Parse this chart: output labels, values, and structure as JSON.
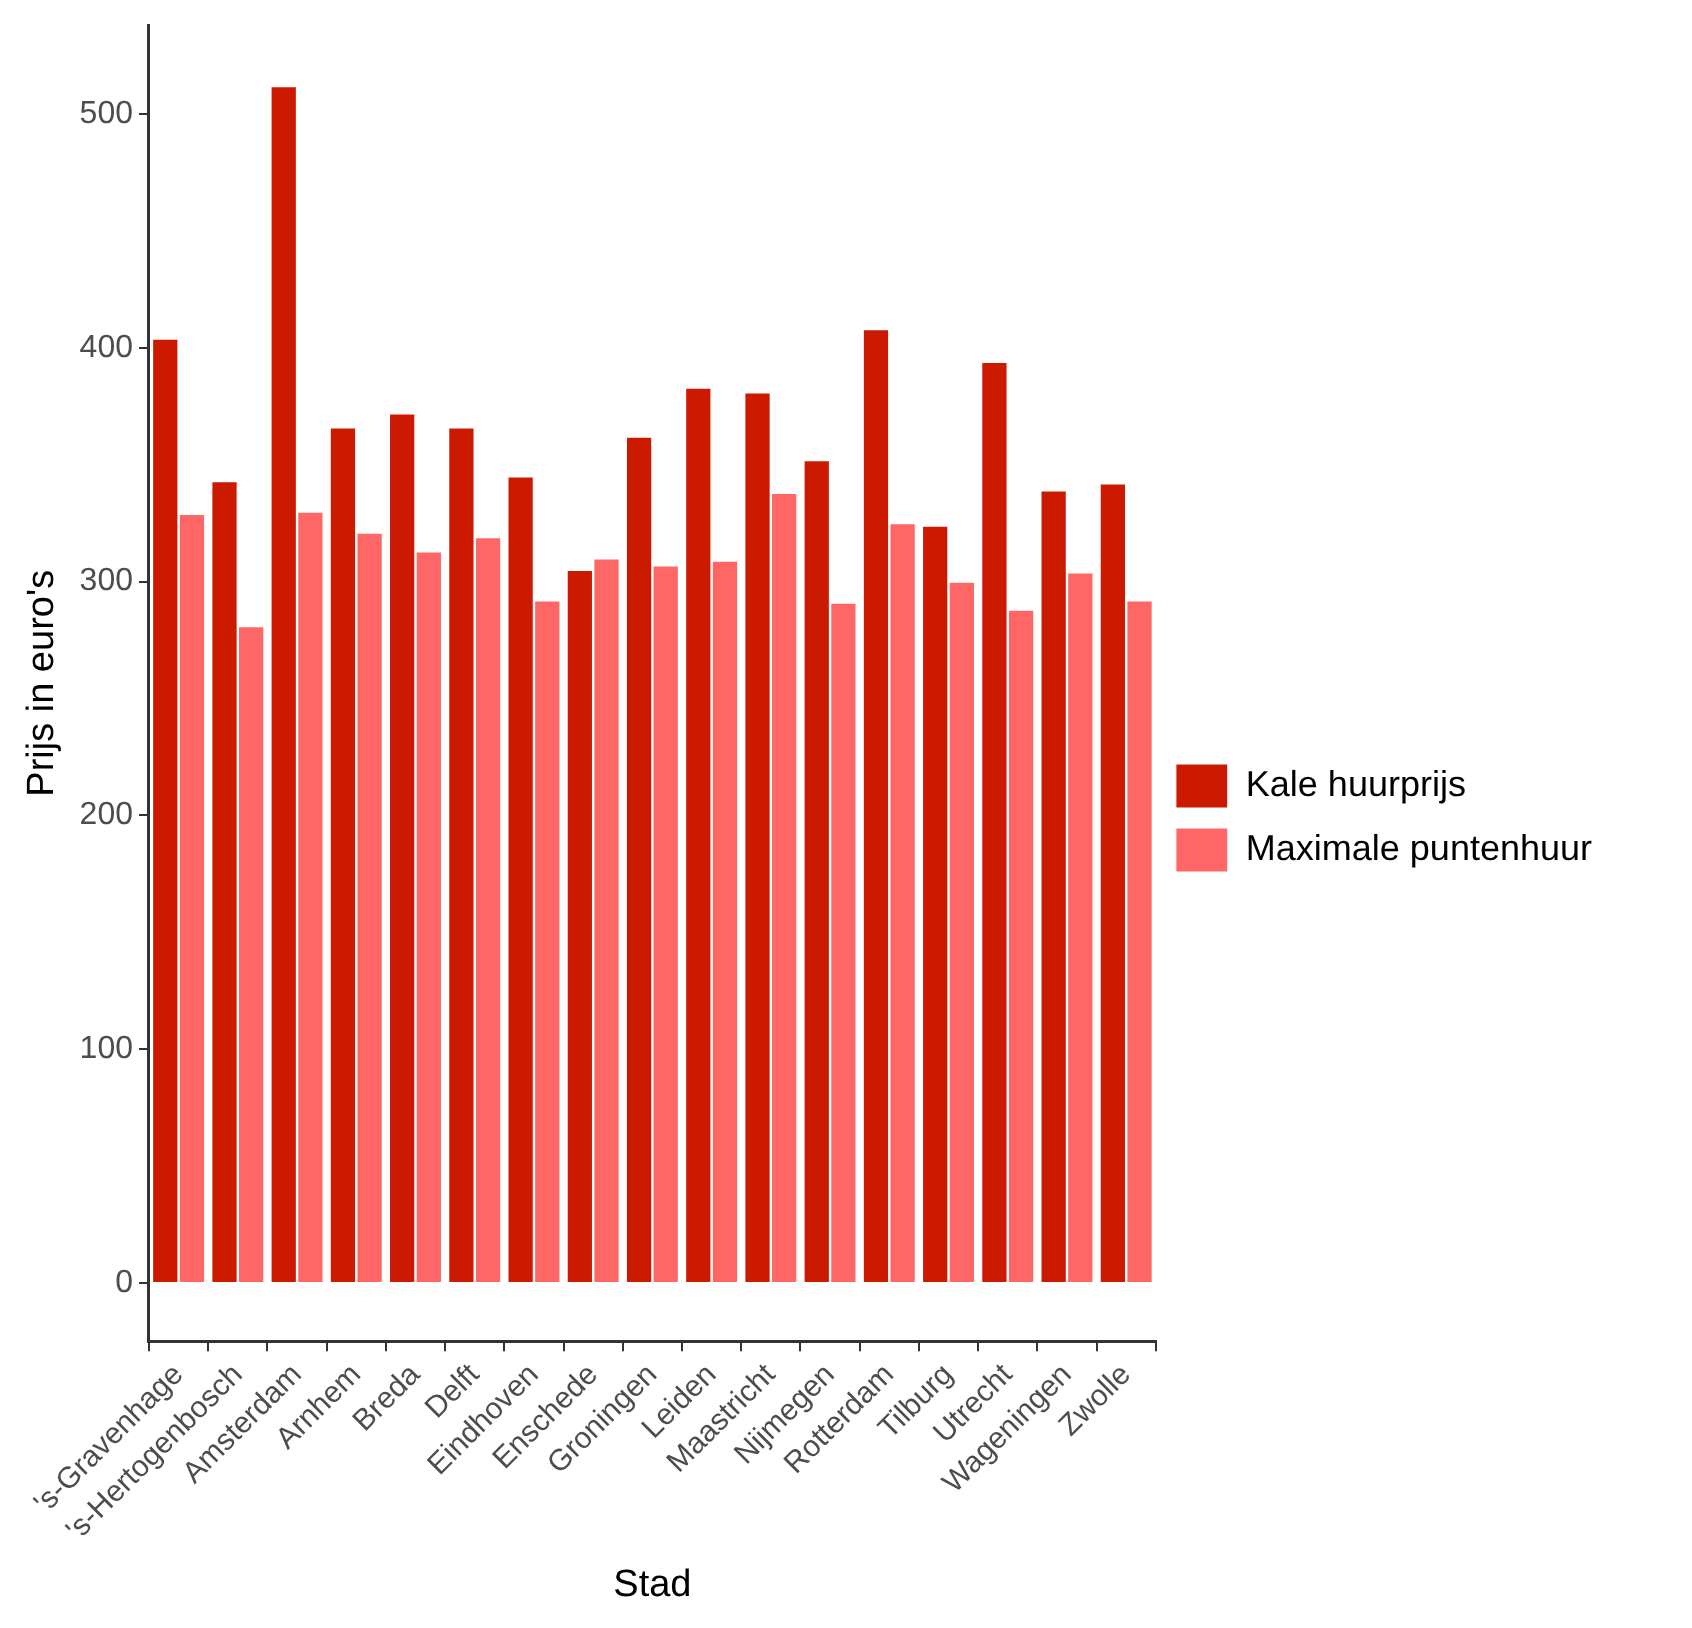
{
  "chart_data": {
    "type": "bar",
    "xlabel": "Stad",
    "ylabel": "Prijs in euro's",
    "categories": [
      "'s-Gravenhage",
      "'s-Hertogenbosch",
      "Amsterdam",
      "Arnhem",
      "Breda",
      "Delft",
      "Eindhoven",
      "Enschede",
      "Groningen",
      "Leiden",
      "Maastricht",
      "Nijmegen",
      "Rotterdam",
      "Tilburg",
      "Utrecht",
      "Wageningen",
      "Zwolle"
    ],
    "series": [
      {
        "name": "Kale huurprijs",
        "color": "#cc1a00",
        "values": [
          404,
          343,
          512,
          366,
          372,
          366,
          345,
          305,
          362,
          383,
          381,
          352,
          408,
          324,
          394,
          339,
          342
        ]
      },
      {
        "name": "Maximale puntenhuur",
        "color": "#ff6666",
        "values": [
          329,
          281,
          330,
          321,
          313,
          319,
          292,
          310,
          307,
          309,
          338,
          291,
          325,
          300,
          288,
          304,
          292
        ]
      }
    ],
    "ylim": [
      -25,
      538
    ],
    "yticks": [
      0,
      100,
      200,
      300,
      400,
      500
    ],
    "legend": "right"
  }
}
